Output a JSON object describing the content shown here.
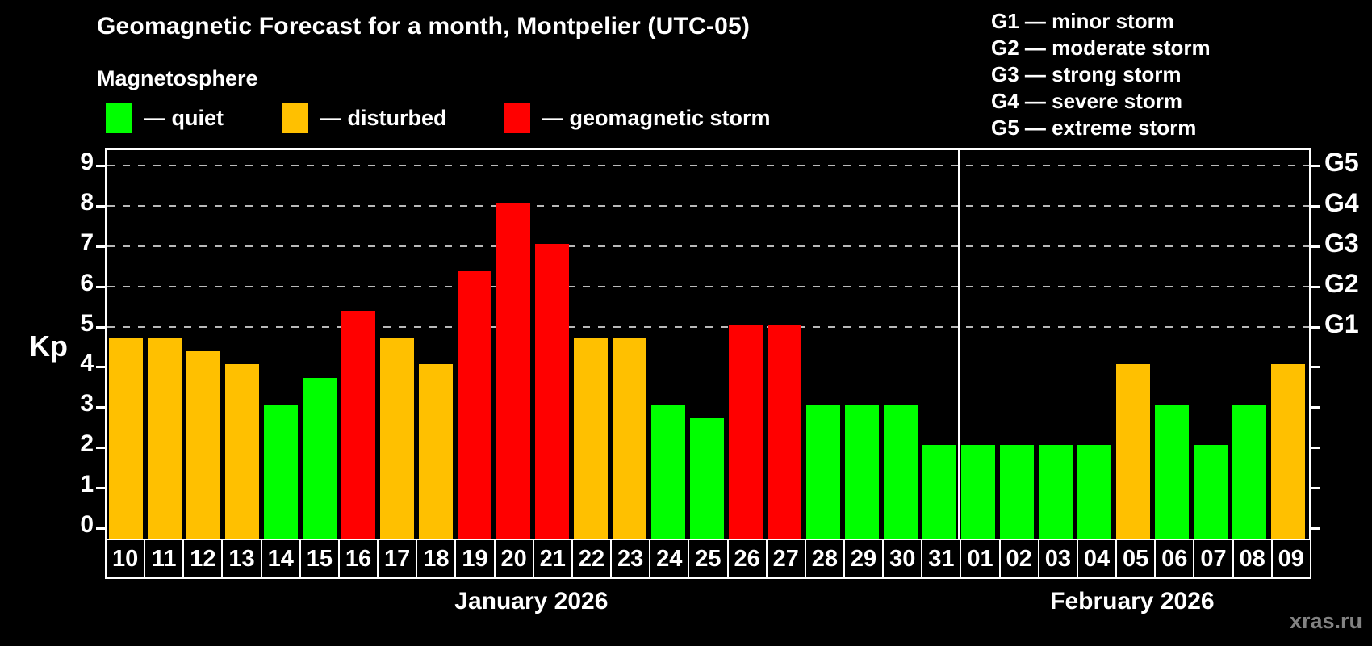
{
  "header": {
    "title": "Geomagnetic Forecast for a month, Montpelier (UTC-05)",
    "subtitle": "Magnetosphere",
    "legend": [
      {
        "label": "— quiet",
        "status": "quiet"
      },
      {
        "label": "— disturbed",
        "status": "disturbed"
      },
      {
        "label": "— geomagnetic storm",
        "status": "storm"
      }
    ],
    "storm_scale": [
      "G1 — minor storm",
      "G2 — moderate storm",
      "G3 — strong storm",
      "G4 — severe storm",
      "G5 — extreme storm"
    ]
  },
  "palette": {
    "quiet": "#00ff00",
    "disturbed": "#ffc000",
    "storm": "#ff0000",
    "axis": "#ffffff",
    "gridline": "#b9b9b9",
    "background": "#000000"
  },
  "watermark": "xras.ru",
  "chart_data": {
    "type": "bar",
    "title": "Geomagnetic Forecast for a month, Montpelier (UTC-05)",
    "ylabel": "Kp",
    "ylim": [
      0,
      9.5
    ],
    "yticks": [
      0,
      1,
      2,
      3,
      4,
      5,
      6,
      7,
      8,
      9
    ],
    "gridlines_at": [
      5,
      6,
      7,
      8,
      9
    ],
    "grid": "dashed, levels 5-9 only",
    "legend_position": "top-left",
    "right_axis": [
      {
        "kp": 5,
        "label": "G1"
      },
      {
        "kp": 6,
        "label": "G2"
      },
      {
        "kp": 7,
        "label": "G3"
      },
      {
        "kp": 8,
        "label": "G4"
      },
      {
        "kp": 9,
        "label": "G5"
      }
    ],
    "months": [
      {
        "label": "January 2026",
        "days": 22
      },
      {
        "label": "February 2026",
        "days": 9
      }
    ],
    "bars": [
      {
        "date": "10",
        "kp": 4.67,
        "status": "disturbed"
      },
      {
        "date": "11",
        "kp": 4.67,
        "status": "disturbed"
      },
      {
        "date": "12",
        "kp": 4.33,
        "status": "disturbed"
      },
      {
        "date": "13",
        "kp": 4.0,
        "status": "disturbed"
      },
      {
        "date": "14",
        "kp": 3.0,
        "status": "quiet"
      },
      {
        "date": "15",
        "kp": 3.67,
        "status": "quiet"
      },
      {
        "date": "16",
        "kp": 5.33,
        "status": "storm"
      },
      {
        "date": "17",
        "kp": 4.67,
        "status": "disturbed"
      },
      {
        "date": "18",
        "kp": 4.0,
        "status": "disturbed"
      },
      {
        "date": "19",
        "kp": 6.33,
        "status": "storm"
      },
      {
        "date": "20",
        "kp": 8.0,
        "status": "storm"
      },
      {
        "date": "21",
        "kp": 7.0,
        "status": "storm"
      },
      {
        "date": "22",
        "kp": 4.67,
        "status": "disturbed"
      },
      {
        "date": "23",
        "kp": 4.67,
        "status": "disturbed"
      },
      {
        "date": "24",
        "kp": 3.0,
        "status": "quiet"
      },
      {
        "date": "25",
        "kp": 2.67,
        "status": "quiet"
      },
      {
        "date": "26",
        "kp": 5.0,
        "status": "storm"
      },
      {
        "date": "27",
        "kp": 5.0,
        "status": "storm"
      },
      {
        "date": "28",
        "kp": 3.0,
        "status": "quiet"
      },
      {
        "date": "29",
        "kp": 3.0,
        "status": "quiet"
      },
      {
        "date": "30",
        "kp": 3.0,
        "status": "quiet"
      },
      {
        "date": "31",
        "kp": 2.0,
        "status": "quiet"
      },
      {
        "date": "01",
        "kp": 2.0,
        "status": "quiet"
      },
      {
        "date": "02",
        "kp": 2.0,
        "status": "quiet"
      },
      {
        "date": "03",
        "kp": 2.0,
        "status": "quiet"
      },
      {
        "date": "04",
        "kp": 2.0,
        "status": "quiet"
      },
      {
        "date": "05",
        "kp": 4.0,
        "status": "disturbed"
      },
      {
        "date": "06",
        "kp": 3.0,
        "status": "quiet"
      },
      {
        "date": "07",
        "kp": 2.0,
        "status": "quiet"
      },
      {
        "date": "08",
        "kp": 3.0,
        "status": "quiet"
      },
      {
        "date": "09",
        "kp": 4.0,
        "status": "disturbed"
      }
    ]
  }
}
